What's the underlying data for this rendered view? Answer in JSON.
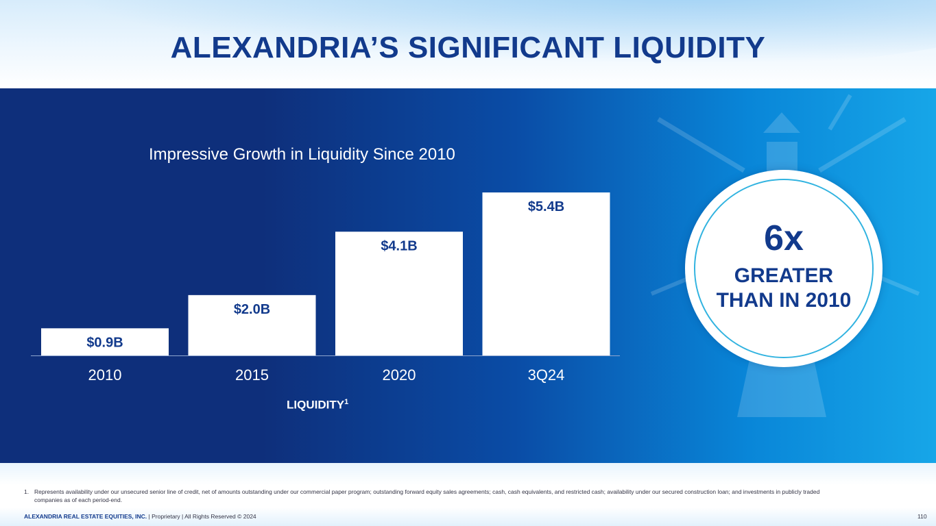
{
  "header": {
    "title": "ALEXANDRIA’S SIGNIFICANT LIQUIDITY"
  },
  "chart_data": {
    "type": "bar",
    "title": "Impressive Growth in Liquidity Since 2010",
    "categories": [
      "2010",
      "2015",
      "2020",
      "3Q24"
    ],
    "values": [
      0.9,
      2.0,
      4.1,
      5.4
    ],
    "data_labels": [
      "$0.9B",
      "$2.0B",
      "$4.1B",
      "$5.4B"
    ],
    "xlabel": "LIQUIDITY",
    "xlabel_footnote": "1",
    "ylabel": "",
    "ylim": [
      0,
      5.4
    ],
    "grid": false,
    "unit": "$B"
  },
  "callout": {
    "big": "6x",
    "line1": "GREATER",
    "line2": "THAN IN 2010"
  },
  "footnote": {
    "number": "1.",
    "text": "Represents availability under our unsecured senior line of credit, net of amounts outstanding under our commercial paper program; outstanding forward equity sales agreements; cash, cash equivalents, and restricted cash; availability under our secured construction loan; and investments in publicly traded companies as of each period-end."
  },
  "footer": {
    "company": "ALEXANDRIA REAL ESTATE EQUITIES, INC.",
    "rest": " | Proprietary | All Rights Reserved © 2024",
    "page": "110"
  },
  "colors": {
    "navy": "#123a8c",
    "bar": "#ffffff",
    "accent": "#31b3e0"
  }
}
